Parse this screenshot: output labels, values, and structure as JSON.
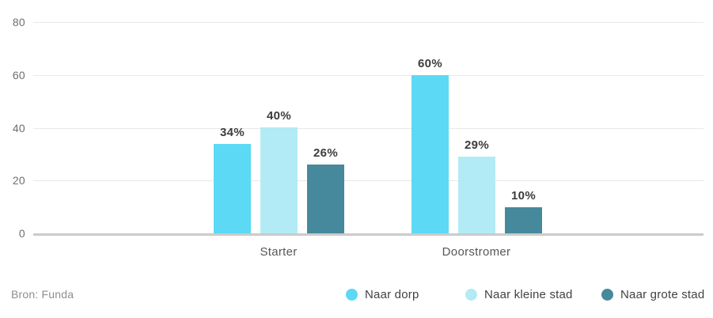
{
  "chart_data": {
    "type": "bar",
    "categories": [
      "Starter",
      "Doorstromer"
    ],
    "series": [
      {
        "name": "Naar dorp",
        "color": "#5cd9f4",
        "values": [
          34,
          60
        ]
      },
      {
        "name": "Naar kleine stad",
        "color": "#b2ebf5",
        "values": [
          40,
          29
        ]
      },
      {
        "name": "Naar grote stad",
        "color": "#46899c",
        "values": [
          26,
          10
        ]
      }
    ],
    "value_label_suffix": "%",
    "value_labels": [
      [
        "34%",
        "60%"
      ],
      [
        "40%",
        "29%"
      ],
      [
        "26%",
        "10%"
      ]
    ],
    "y_ticks": [
      0,
      20,
      40,
      60,
      80
    ],
    "ylim": [
      0,
      80
    ],
    "grid": "horizontal",
    "legend_position": "bottom-right",
    "title": "",
    "xlabel": "",
    "ylabel": ""
  },
  "footer": {
    "source": "Bron: Funda"
  },
  "colors": {
    "background": "#ffffff",
    "gridline": "#e8e8e8",
    "baseline": "#cbcbcb",
    "tick_text": "#6e6e6e",
    "value_text": "#3c3c3c",
    "category_text": "#575757",
    "legend_text": "#424242",
    "source_text": "#8f8f8f"
  }
}
